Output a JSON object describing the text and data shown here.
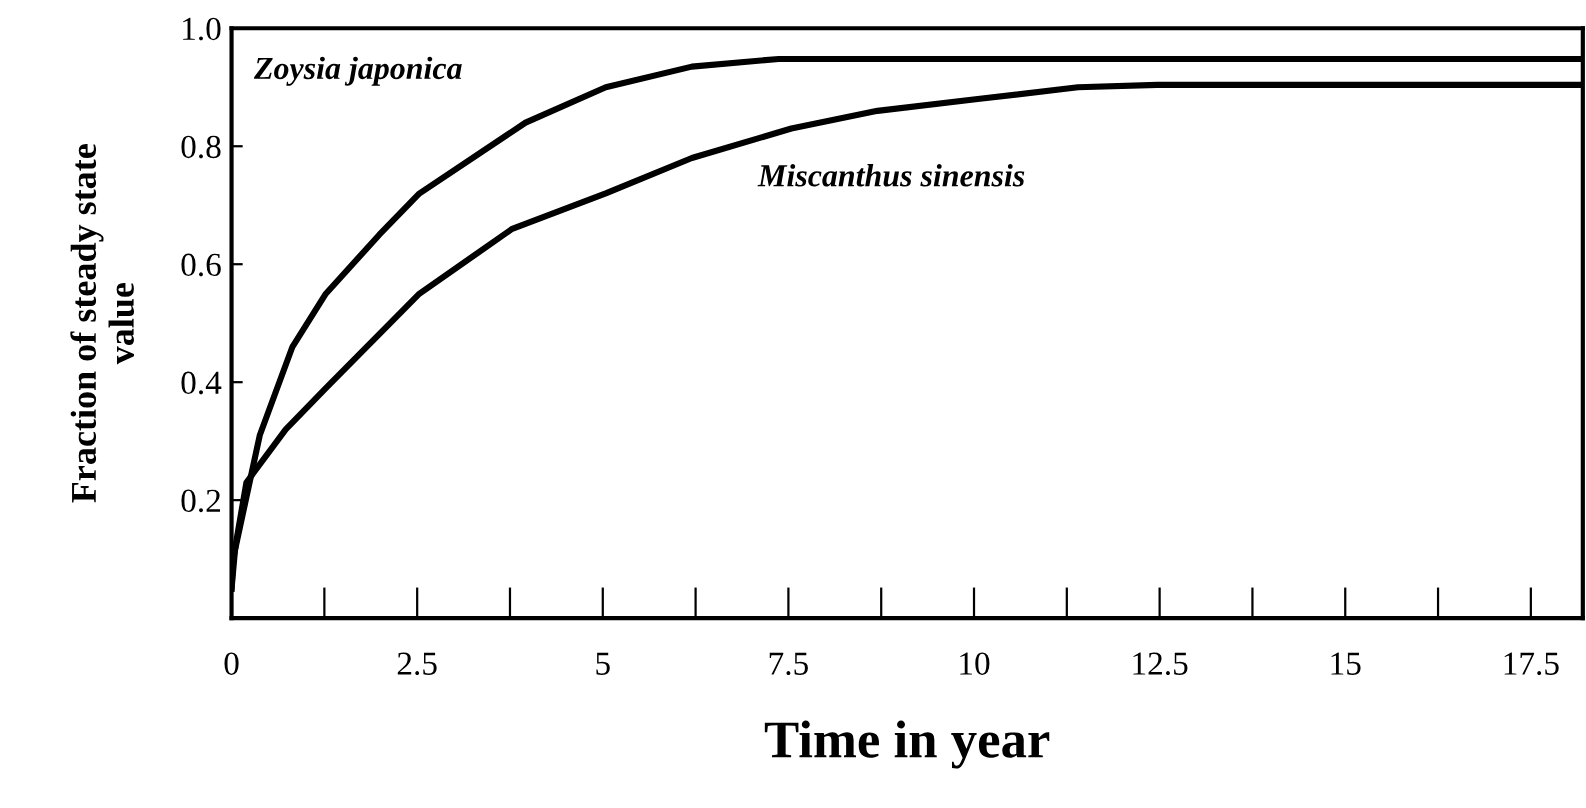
{
  "chart_data": {
    "type": "line",
    "xlabel": "Time in year",
    "ylabel": "Fraction of steady state\nvalue",
    "xlim": [
      0,
      18.2
    ],
    "ylim": [
      0,
      1.0
    ],
    "xticks": [
      0,
      {
        "value": 1.25,
        "label": null
      },
      2.5,
      {
        "value": 3.75,
        "label": null
      },
      5,
      {
        "value": 6.25,
        "label": null
      },
      7.5,
      {
        "value": 8.75,
        "label": null
      },
      10,
      {
        "value": 11.25,
        "label": null
      },
      12.5,
      {
        "value": 13.75,
        "label": null
      },
      15,
      {
        "value": 16.25,
        "label": null
      },
      17.5
    ],
    "yticks": [
      0.2,
      0.4,
      0.6,
      0.8,
      {
        "value": 1.0,
        "label": "1.0"
      }
    ],
    "grid": false,
    "legend": false,
    "marker": "none",
    "line_style": "solid",
    "series": [
      {
        "name": "Zoysia japonica",
        "color": "#000000",
        "x": [
          0,
          0.02,
          0.38,
          0.82,
          1.27,
          1.99,
          2.53,
          3.96,
          5.04,
          6.2,
          7.37,
          10,
          14,
          18.2
        ],
        "values": [
          0.05,
          0.1,
          0.31,
          0.46,
          0.55,
          0.65,
          0.72,
          0.84,
          0.9,
          0.935,
          0.948,
          0.948,
          0.948,
          0.948
        ]
      },
      {
        "name": "Miscanthus sinensis",
        "color": "#000000",
        "x": [
          0,
          0.05,
          0.2,
          0.73,
          1.27,
          2.53,
          3.78,
          5.04,
          6.2,
          7.54,
          8.7,
          10.05,
          11.4,
          12.47,
          15,
          18.2
        ],
        "values": [
          0.05,
          0.12,
          0.23,
          0.32,
          0.39,
          0.55,
          0.66,
          0.72,
          0.78,
          0.83,
          0.86,
          0.88,
          0.9,
          0.904,
          0.904,
          0.904
        ]
      }
    ]
  }
}
